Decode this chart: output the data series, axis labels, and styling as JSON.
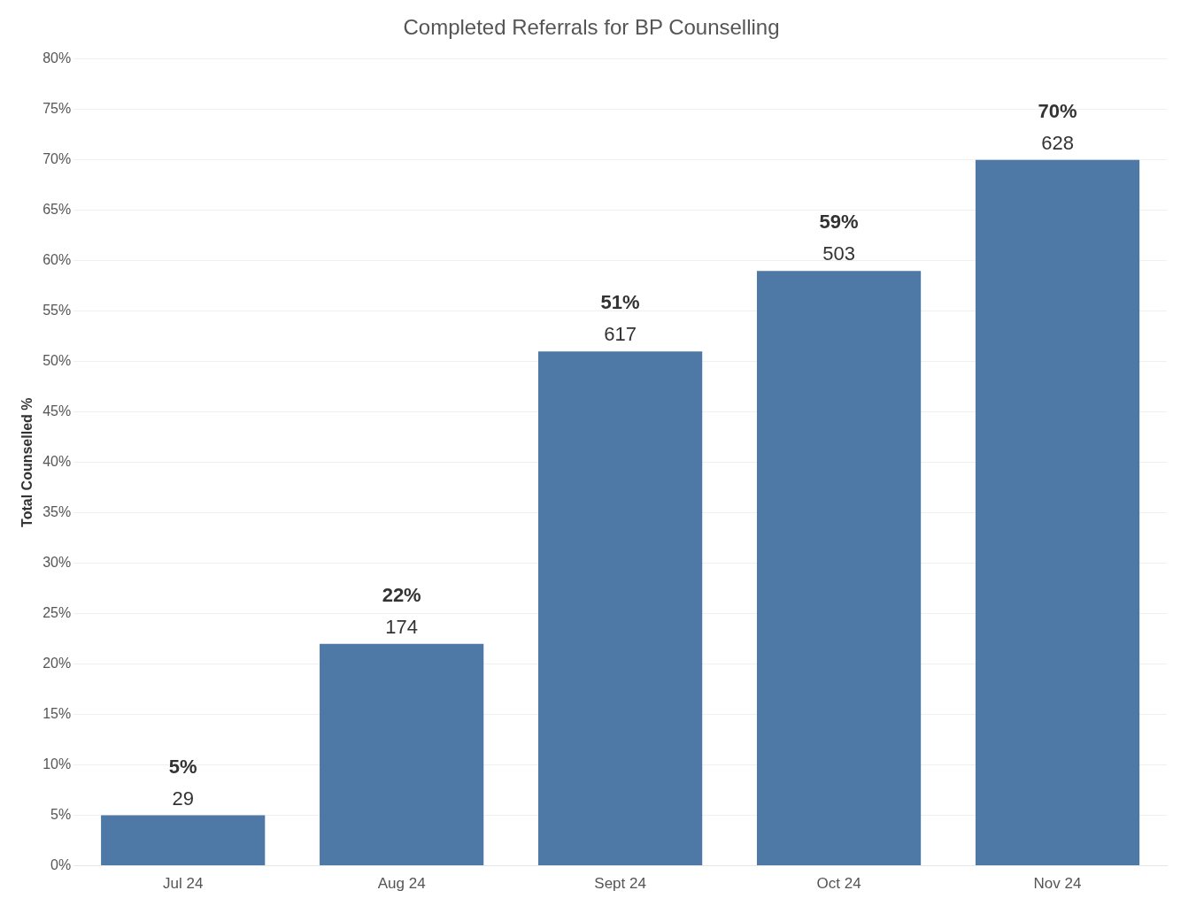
{
  "chart_data": {
    "type": "bar",
    "title": "Completed Referrals for BP Counselling",
    "ylabel": "Total Counselled %",
    "categories": [
      "Jul 24",
      "Aug 24",
      "Sept 24",
      "Oct 24",
      "Nov 24"
    ],
    "values": [
      5,
      22,
      51,
      59,
      70
    ],
    "color": "#4e79a7",
    "value_labels": [
      "5%",
      "22%",
      "51%",
      "59%",
      "70%"
    ],
    "annotations": [
      {
        "text": "29",
        "x": "Jul 24",
        "y": 5
      },
      {
        "text": "174",
        "x": "Aug 24",
        "y": 22
      },
      {
        "text": "617",
        "x": "Sept 24",
        "y": 51
      },
      {
        "text": "503",
        "x": "Oct 24",
        "y": 59
      },
      {
        "text": "628",
        "x": "Nov 24",
        "y": 70
      }
    ],
    "ylim": [
      0,
      80
    ],
    "yticks": [
      {
        "value": 0,
        "label": "0%"
      },
      {
        "value": 5,
        "label": "5%"
      },
      {
        "value": 10,
        "label": "10%"
      },
      {
        "value": 15,
        "label": "15%"
      },
      {
        "value": 20,
        "label": "20%"
      },
      {
        "value": 25,
        "label": "25%"
      },
      {
        "value": 30,
        "label": "30%"
      },
      {
        "value": 35,
        "label": "35%"
      },
      {
        "value": 40,
        "label": "40%"
      },
      {
        "value": 45,
        "label": "45%"
      },
      {
        "value": 50,
        "label": "50%"
      },
      {
        "value": 55,
        "label": "55%"
      },
      {
        "value": 60,
        "label": "60%"
      },
      {
        "value": 65,
        "label": "65%"
      },
      {
        "value": 70,
        "label": "70%"
      },
      {
        "value": 75,
        "label": "75%"
      },
      {
        "value": 80,
        "label": "80%"
      }
    ],
    "grid": "y",
    "legend": false
  }
}
